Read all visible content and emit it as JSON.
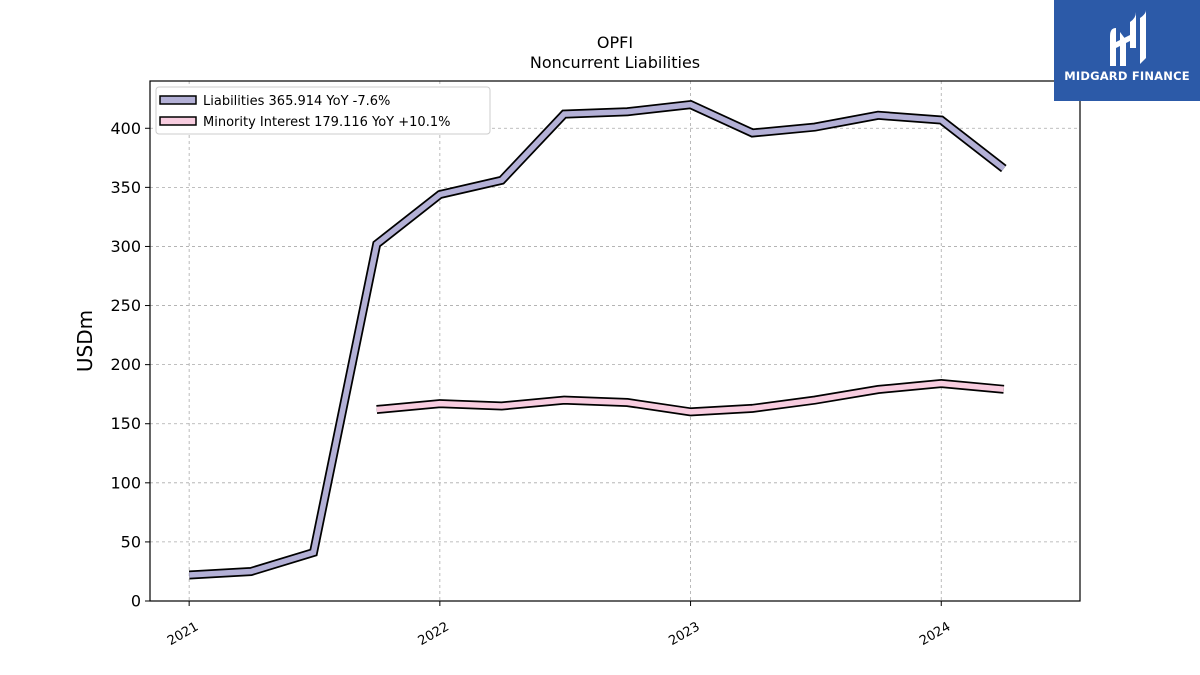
{
  "brand": {
    "name": "MIDGARD FINANCE",
    "color": "#2c5aa8"
  },
  "chart_data": {
    "type": "line",
    "title": "OPFI",
    "subtitle": "Noncurrent  Liabilities",
    "ylabel": "USDm",
    "xlabel": "",
    "ylim": [
      0,
      440
    ],
    "yticks": [
      0,
      50,
      100,
      150,
      200,
      250,
      300,
      350,
      400
    ],
    "xlim": [
      "2020-11-05",
      "2024-07-21"
    ],
    "xticks": [
      {
        "date": "2021-01-01",
        "label": "2021"
      },
      {
        "date": "2022-01-01",
        "label": "2022"
      },
      {
        "date": "2023-01-01",
        "label": "2023"
      },
      {
        "date": "2024-01-01",
        "label": "2024"
      }
    ],
    "grid": true,
    "legend_position": "top-left",
    "series": [
      {
        "name": "Liabilities",
        "legend": "Liabilities  365.914 YoY -7.6%",
        "color": "#b3b0d6",
        "points": [
          {
            "x": "2021-01-01",
            "y": 22
          },
          {
            "x": "2021-04-01",
            "y": 25
          },
          {
            "x": "2021-07-01",
            "y": 41
          },
          {
            "x": "2021-10-01",
            "y": 302
          },
          {
            "x": "2022-01-01",
            "y": 344
          },
          {
            "x": "2022-04-01",
            "y": 356
          },
          {
            "x": "2022-07-01",
            "y": 412
          },
          {
            "x": "2022-10-01",
            "y": 414
          },
          {
            "x": "2023-01-01",
            "y": 420
          },
          {
            "x": "2023-04-01",
            "y": 396
          },
          {
            "x": "2023-07-01",
            "y": 401
          },
          {
            "x": "2023-10-01",
            "y": 411
          },
          {
            "x": "2024-01-01",
            "y": 407
          },
          {
            "x": "2024-04-01",
            "y": 365.914
          }
        ]
      },
      {
        "name": "Minority Interest",
        "legend": "Minority Interest  179.116 YoY +10.1%",
        "color": "#f8cde0",
        "points": [
          {
            "x": "2021-10-01",
            "y": 162
          },
          {
            "x": "2022-01-01",
            "y": 167
          },
          {
            "x": "2022-04-01",
            "y": 165
          },
          {
            "x": "2022-07-01",
            "y": 170
          },
          {
            "x": "2022-10-01",
            "y": 168
          },
          {
            "x": "2023-01-01",
            "y": 160
          },
          {
            "x": "2023-04-01",
            "y": 163
          },
          {
            "x": "2023-07-01",
            "y": 170
          },
          {
            "x": "2023-10-01",
            "y": 179
          },
          {
            "x": "2024-01-01",
            "y": 184
          },
          {
            "x": "2024-04-01",
            "y": 179.116
          }
        ]
      }
    ]
  }
}
